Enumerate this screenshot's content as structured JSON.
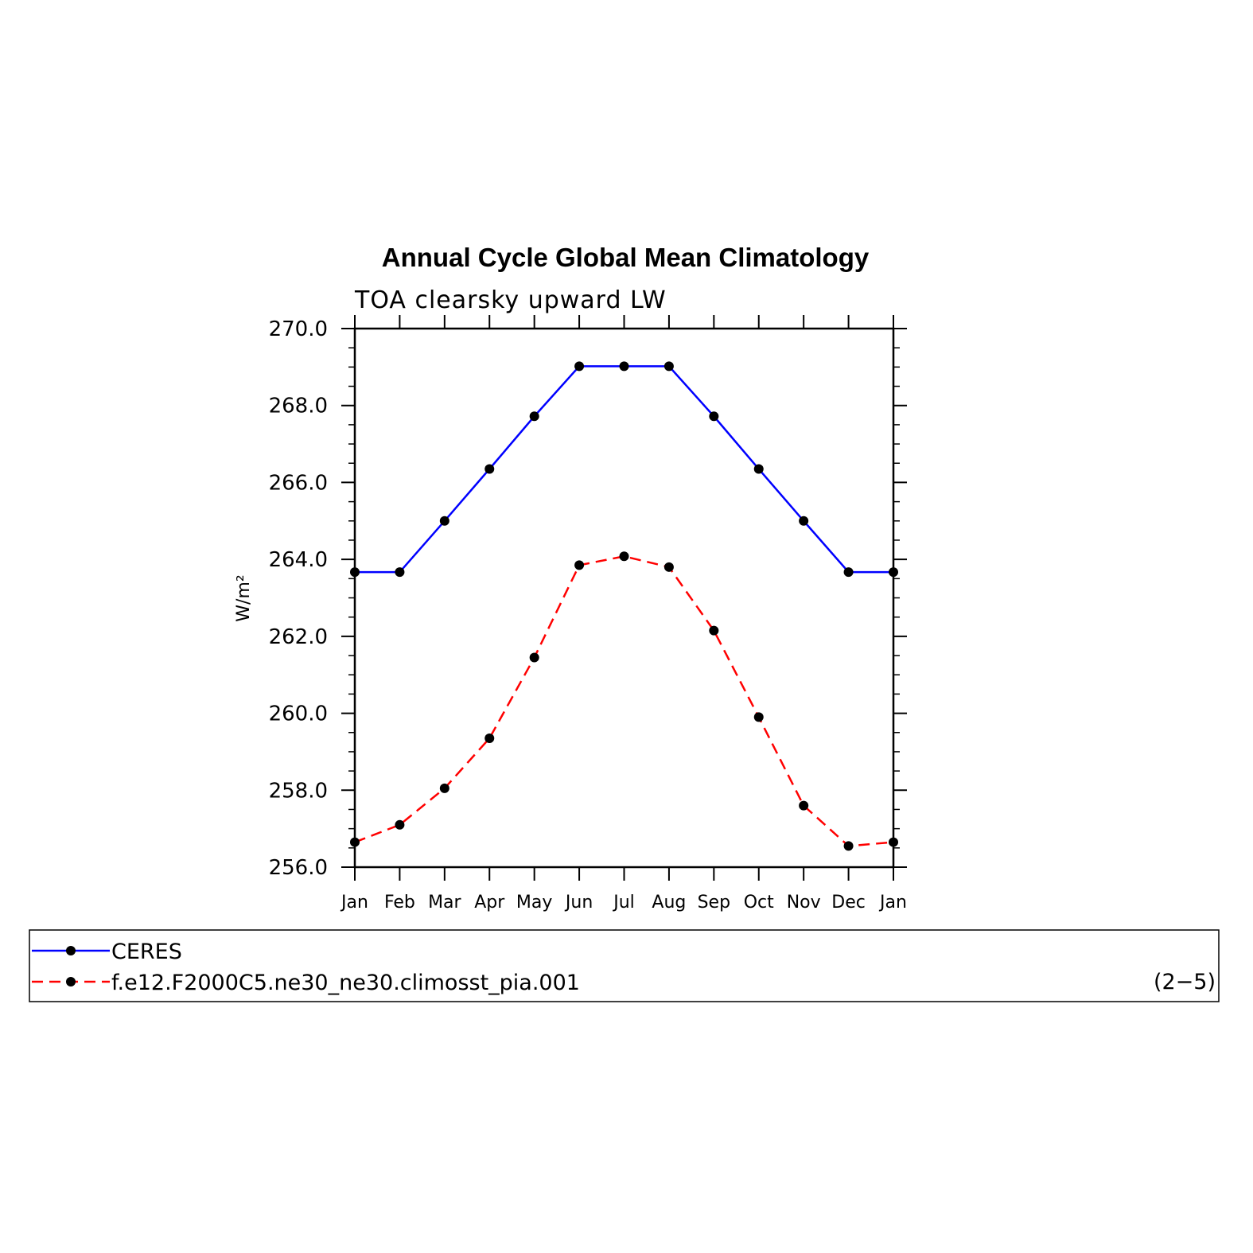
{
  "chart_data": {
    "type": "line",
    "title": "Annual Cycle Global Mean Climatology",
    "subtitle": "TOA clearsky upward LW",
    "ylabel": "W/m²",
    "xlabel": "",
    "categories": [
      "Jan",
      "Feb",
      "Mar",
      "Apr",
      "May",
      "Jun",
      "Jul",
      "Aug",
      "Sep",
      "Oct",
      "Nov",
      "Dec",
      "Jan"
    ],
    "ylim": [
      256.0,
      270.0
    ],
    "yticks": [
      "270.0",
      "268.0",
      "266.0",
      "264.0",
      "262.0",
      "260.0",
      "258.0",
      "256.0"
    ],
    "ytick_values": [
      270,
      268,
      266,
      264,
      262,
      260,
      258,
      256
    ],
    "grid": false,
    "legend_position": "bottom",
    "series": [
      {
        "name": "CERES",
        "color": "#0000ff",
        "style": "solid",
        "values": [
          263.67,
          263.67,
          265.0,
          266.35,
          267.72,
          269.02,
          269.02,
          269.02,
          267.72,
          266.35,
          265.0,
          263.67,
          263.67
        ]
      },
      {
        "name": "f.e12.F2000C5.ne30_ne30.climosst_pia.001",
        "color": "#ff0000",
        "style": "dashed",
        "values": [
          256.65,
          257.1,
          258.05,
          259.35,
          261.45,
          263.85,
          264.08,
          263.8,
          262.15,
          259.9,
          257.6,
          256.55,
          256.65
        ]
      }
    ]
  },
  "legend": {
    "items": [
      "CERES",
      "f.e12.F2000C5.ne30_ne30.climosst_pia.001"
    ],
    "panel_label": "(2−5)"
  }
}
